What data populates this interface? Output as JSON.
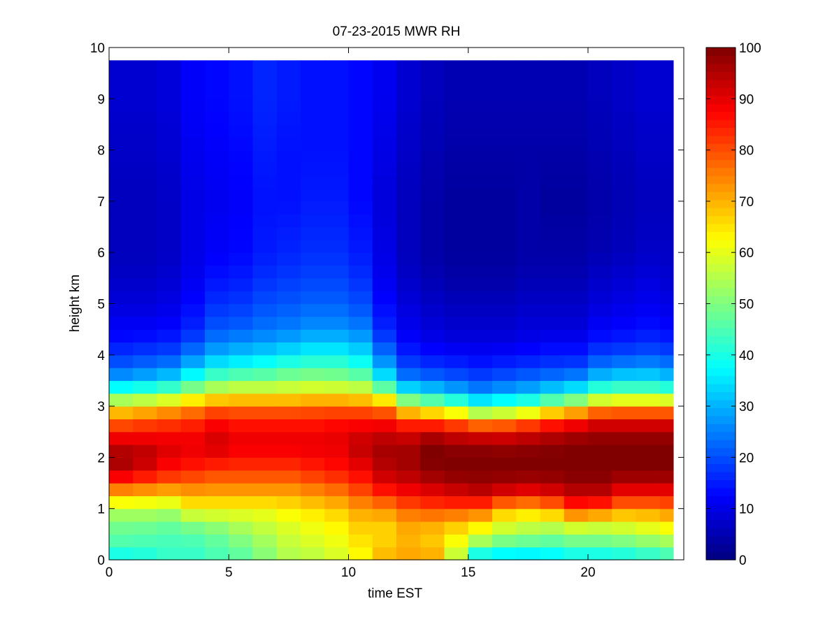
{
  "chart_data": {
    "type": "heatmap",
    "title": "07-23-2015 MWR RH",
    "xlabel": "time EST",
    "ylabel": "height km",
    "xlim": [
      0,
      24
    ],
    "ylim": [
      0,
      10
    ],
    "x_ticks": [
      "0",
      "5",
      "10",
      "15",
      "20"
    ],
    "y_ticks": [
      "0",
      "1",
      "2",
      "3",
      "4",
      "5",
      "6",
      "7",
      "8",
      "9",
      "10"
    ],
    "colorbar": {
      "colormap": "jet",
      "range": [
        0,
        100
      ],
      "ticks": [
        "0",
        "10",
        "20",
        "30",
        "40",
        "50",
        "60",
        "70",
        "80",
        "90",
        "100"
      ]
    },
    "time_hours": [
      0,
      1,
      2,
      3,
      4,
      5,
      6,
      7,
      8,
      9,
      10,
      11,
      12,
      13,
      14,
      15,
      16,
      17,
      18,
      19,
      20,
      21,
      22,
      23
    ],
    "data_top_km": 9.75,
    "profile_heights_km": [
      0,
      0.25,
      0.5,
      0.75,
      1,
      1.25,
      1.5,
      1.75,
      2,
      2.25,
      2.5,
      2.75,
      3,
      3.25,
      3.5,
      3.75,
      4,
      4.25,
      4.5,
      5,
      5.5,
      6,
      7,
      8,
      9,
      9.75
    ],
    "rh_percent": [
      [
        36,
        44,
        47,
        50,
        56,
        68,
        82,
        94,
        97,
        93,
        85,
        76,
        63,
        45,
        30,
        22,
        18,
        14,
        12,
        9,
        7,
        6,
        6,
        7,
        8,
        8
      ],
      [
        38,
        44,
        46,
        50,
        56,
        67,
        80,
        90,
        95,
        92,
        86,
        78,
        65,
        47,
        32,
        24,
        19,
        15,
        12,
        9,
        7,
        6,
        6,
        7,
        8,
        8
      ],
      [
        42,
        44,
        45,
        49,
        55,
        66,
        78,
        86,
        90,
        91,
        86,
        80,
        68,
        50,
        35,
        26,
        20,
        16,
        13,
        10,
        8,
        7,
        7,
        8,
        9,
        9
      ],
      [
        42,
        44,
        46,
        52,
        62,
        70,
        77,
        84,
        88,
        90,
        87,
        82,
        72,
        56,
        42,
        32,
        25,
        20,
        16,
        13,
        11,
        10,
        10,
        11,
        12,
        12
      ],
      [
        44,
        46,
        48,
        54,
        62,
        70,
        76,
        82,
        88,
        92,
        90,
        86,
        76,
        60,
        48,
        38,
        30,
        25,
        21,
        17,
        14,
        12,
        11,
        12,
        13,
        13
      ],
      [
        46,
        48,
        52,
        56,
        62,
        70,
        76,
        82,
        86,
        90,
        88,
        84,
        76,
        62,
        50,
        40,
        32,
        27,
        22,
        18,
        15,
        13,
        12,
        13,
        14,
        14
      ],
      [
        50,
        52,
        55,
        58,
        62,
        70,
        76,
        82,
        86,
        90,
        88,
        84,
        76,
        62,
        50,
        42,
        34,
        28,
        24,
        20,
        17,
        15,
        14,
        15,
        16,
        16
      ],
      [
        54,
        56,
        58,
        60,
        64,
        70,
        76,
        82,
        86,
        90,
        88,
        84,
        76,
        62,
        52,
        44,
        36,
        30,
        25,
        21,
        18,
        16,
        14,
        14,
        15,
        15
      ],
      [
        55,
        58,
        60,
        62,
        66,
        72,
        78,
        84,
        87,
        90,
        88,
        84,
        77,
        63,
        53,
        45,
        38,
        32,
        27,
        22,
        19,
        17,
        15,
        14,
        14,
        14
      ],
      [
        58,
        60,
        62,
        64,
        68,
        74,
        80,
        86,
        88,
        90,
        89,
        85,
        77,
        63,
        52,
        45,
        38,
        32,
        27,
        22,
        19,
        17,
        15,
        14,
        14,
        14
      ],
      [
        62,
        64,
        66,
        68,
        72,
        78,
        84,
        88,
        92,
        94,
        90,
        86,
        76,
        62,
        50,
        42,
        35,
        30,
        25,
        20,
        17,
        15,
        13,
        13,
        13,
        13
      ],
      [
        70,
        68,
        66,
        68,
        74,
        82,
        90,
        94,
        96,
        96,
        92,
        85,
        74,
        55,
        38,
        30,
        24,
        20,
        16,
        13,
        11,
        10,
        9,
        10,
        11,
        11
      ],
      [
        72,
        70,
        70,
        72,
        78,
        86,
        92,
        96,
        97,
        96,
        90,
        80,
        60,
        40,
        26,
        20,
        16,
        13,
        11,
        9,
        7,
        6,
        6,
        7,
        8,
        8
      ],
      [
        72,
        68,
        68,
        72,
        80,
        88,
        94,
        99,
        100,
        100,
        92,
        78,
        55,
        36,
        24,
        18,
        14,
        11,
        9,
        7,
        5,
        4,
        4,
        5,
        6,
        6
      ],
      [
        55,
        60,
        64,
        70,
        80,
        90,
        96,
        100,
        100,
        98,
        90,
        74,
        50,
        32,
        22,
        17,
        13,
        10,
        8,
        6,
        4,
        3,
        3,
        4,
        5,
        5
      ],
      [
        30,
        50,
        58,
        68,
        78,
        92,
        97,
        100,
        100,
        98,
        88,
        68,
        42,
        28,
        20,
        16,
        12,
        10,
        8,
        6,
        4,
        3,
        3,
        4,
        5,
        5
      ],
      [
        30,
        45,
        54,
        62,
        70,
        88,
        96,
        100,
        100,
        97,
        88,
        70,
        45,
        30,
        22,
        17,
        13,
        10,
        8,
        6,
        4,
        3,
        3,
        4,
        5,
        5
      ],
      [
        30,
        44,
        52,
        60,
        68,
        86,
        95,
        100,
        100,
        98,
        90,
        74,
        48,
        32,
        24,
        18,
        14,
        11,
        9,
        7,
        5,
        4,
        4,
        4,
        5,
        5
      ],
      [
        32,
        44,
        50,
        60,
        72,
        88,
        96,
        100,
        100,
        99,
        92,
        80,
        55,
        36,
        26,
        19,
        15,
        12,
        9,
        7,
        5,
        4,
        3,
        4,
        5,
        5
      ],
      [
        34,
        46,
        52,
        64,
        82,
        92,
        98,
        100,
        100,
        100,
        94,
        84,
        60,
        40,
        28,
        20,
        15,
        12,
        9,
        7,
        5,
        4,
        3,
        4,
        5,
        5
      ],
      [
        34,
        46,
        52,
        62,
        80,
        92,
        98,
        100,
        100,
        100,
        96,
        88,
        68,
        48,
        34,
        25,
        19,
        15,
        12,
        9,
        7,
        5,
        4,
        5,
        6,
        6
      ],
      [
        36,
        46,
        54,
        62,
        74,
        86,
        94,
        100,
        100,
        100,
        96,
        88,
        70,
        50,
        36,
        27,
        20,
        16,
        13,
        10,
        8,
        6,
        5,
        6,
        7,
        7
      ],
      [
        38,
        48,
        56,
        64,
        74,
        86,
        94,
        100,
        100,
        100,
        96,
        88,
        70,
        50,
        36,
        28,
        21,
        17,
        14,
        11,
        9,
        7,
        6,
        7,
        8,
        8
      ],
      [
        40,
        50,
        58,
        66,
        76,
        86,
        94,
        100,
        100,
        100,
        96,
        88,
        70,
        48,
        34,
        26,
        20,
        16,
        13,
        10,
        8,
        7,
        6,
        7,
        8,
        8
      ]
    ]
  }
}
